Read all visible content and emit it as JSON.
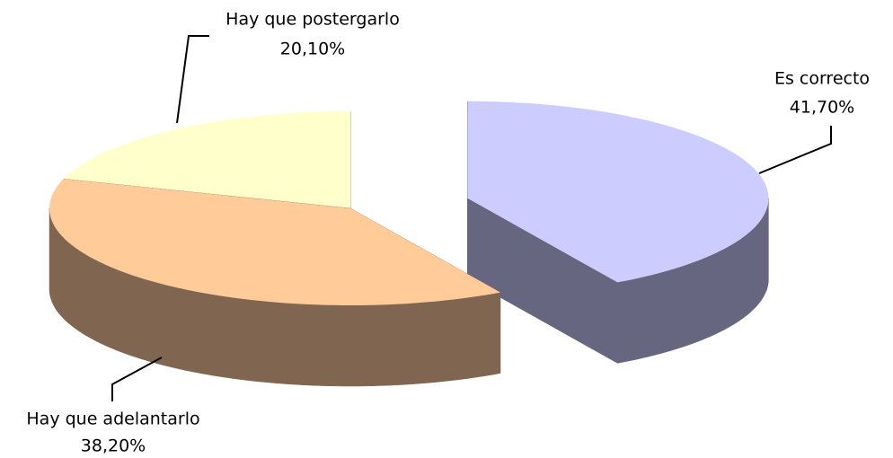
{
  "chart_data": {
    "type": "pie",
    "categories": [
      "Es correcto",
      "Hay que adelantarlo",
      "Hay que postergarlo"
    ],
    "values": [
      41.7,
      38.2,
      20.1
    ],
    "value_labels": [
      "41,70%",
      "38,20%",
      "20,10%"
    ],
    "colors": [
      "#ccccff",
      "#ffcc99",
      "#ffffcc"
    ],
    "side_colors": [
      "#666680",
      "#806650",
      "#808066"
    ],
    "exploded": [
      true,
      false,
      false
    ]
  }
}
